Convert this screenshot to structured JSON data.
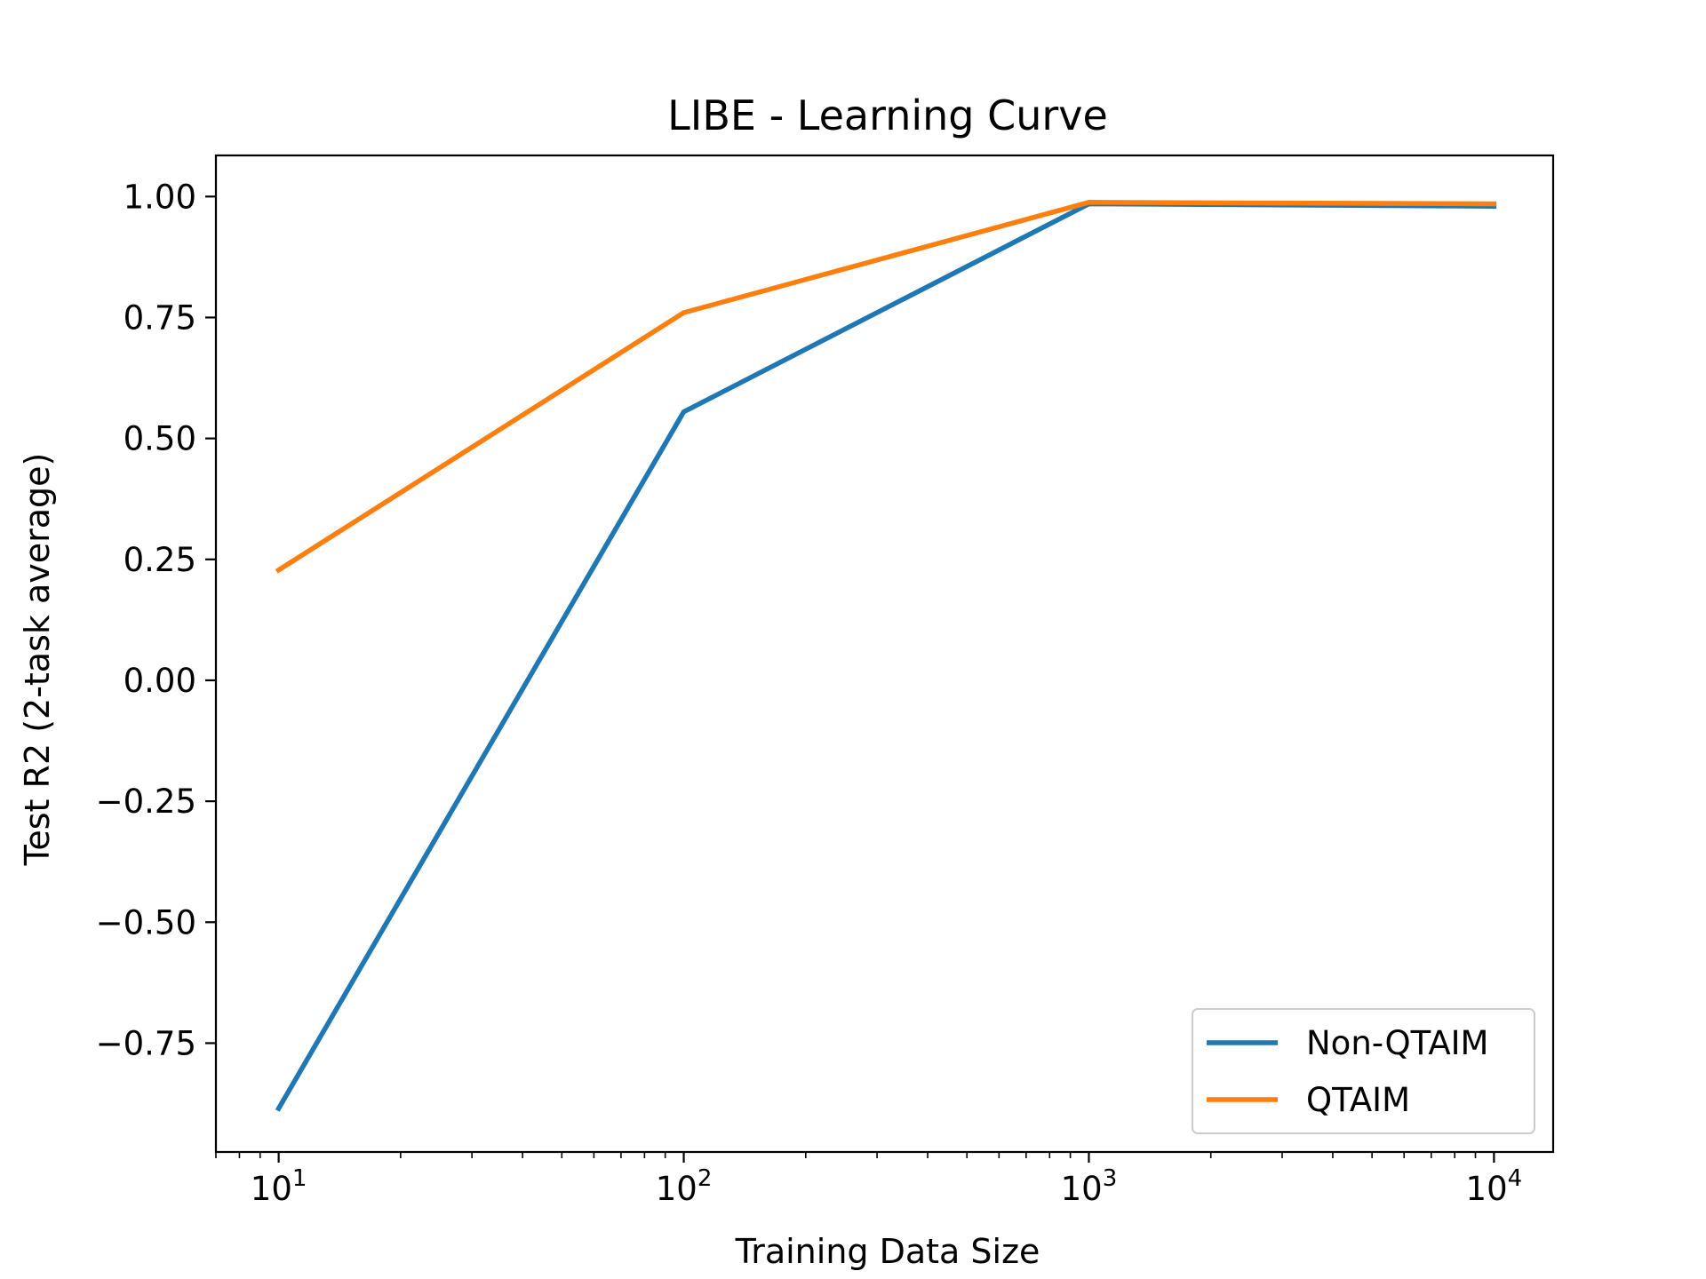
{
  "chart_data": {
    "type": "line",
    "title": "LIBE - Learning Curve",
    "xlabel": "Training Data Size",
    "ylabel": "Test R2 (2-task average)",
    "xscale": "log",
    "xlim": [
      7,
      14000
    ],
    "ylim": [
      -0.975,
      1.085
    ],
    "x": [
      10,
      100,
      1000,
      10000
    ],
    "xticks": [
      {
        "value": 10,
        "base": "10",
        "exp": "1"
      },
      {
        "value": 100,
        "base": "10",
        "exp": "2"
      },
      {
        "value": 1000,
        "base": "10",
        "exp": "3"
      },
      {
        "value": 10000,
        "base": "10",
        "exp": "4"
      }
    ],
    "yticks": [
      {
        "value": 1.0,
        "label": "1.00"
      },
      {
        "value": 0.75,
        "label": "0.75"
      },
      {
        "value": 0.5,
        "label": "0.50"
      },
      {
        "value": 0.25,
        "label": "0.25"
      },
      {
        "value": 0.0,
        "label": "0.00"
      },
      {
        "value": -0.25,
        "label": "−0.25"
      },
      {
        "value": -0.5,
        "label": "−0.50"
      },
      {
        "value": -0.75,
        "label": "−0.75"
      }
    ],
    "series": [
      {
        "name": "Non-QTAIM",
        "color": "#1f77b4",
        "values": [
          -0.885,
          0.555,
          0.985,
          0.98
        ]
      },
      {
        "name": "QTAIM",
        "color": "#ff7f0e",
        "values": [
          0.228,
          0.76,
          0.988,
          0.985
        ]
      }
    ],
    "legend_position": "lower-right",
    "grid": false
  }
}
